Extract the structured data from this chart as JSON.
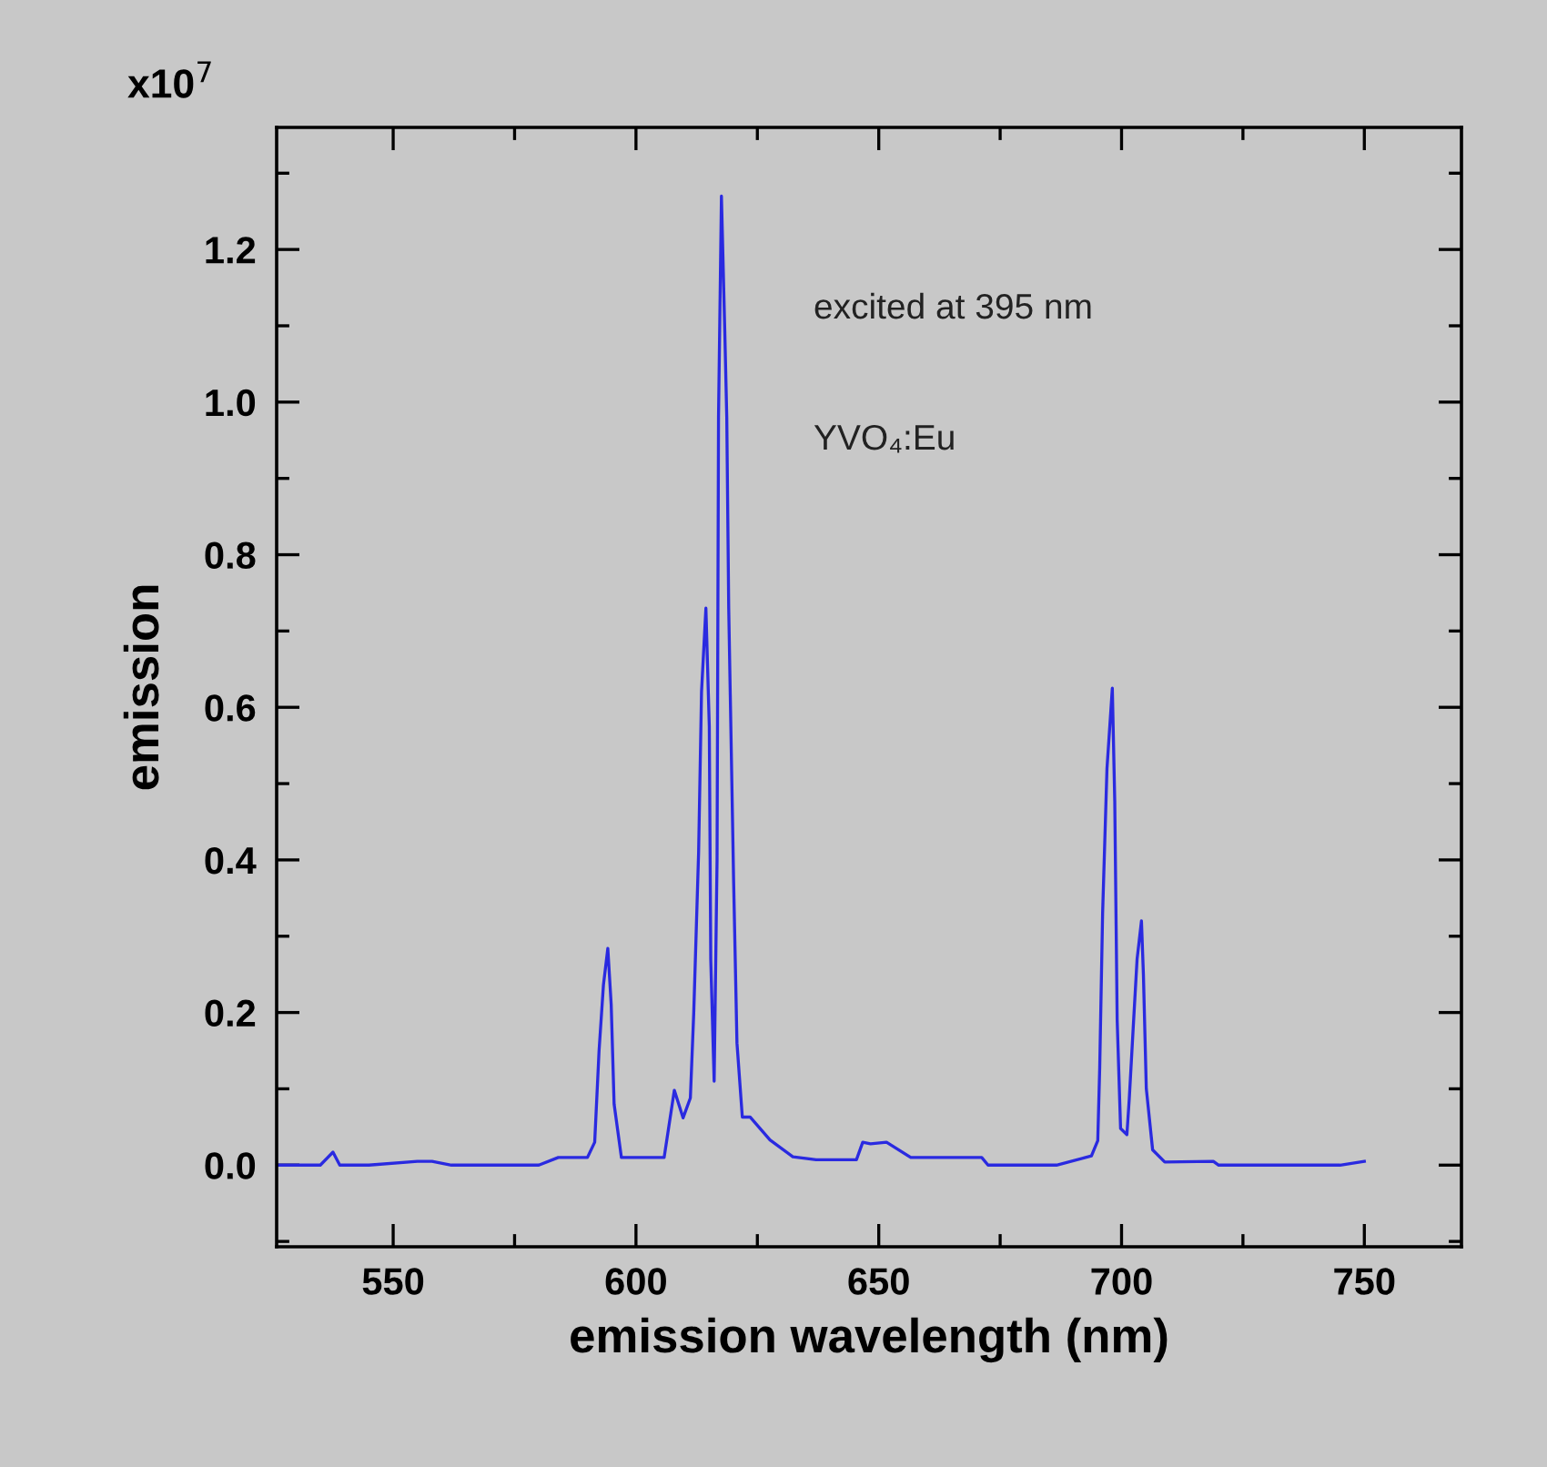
{
  "chart_data": {
    "type": "line",
    "xlabel": "emission wavelength (nm)",
    "ylabel": "emission",
    "annotations": [
      "x10$^{7}$",
      "excited at 395 nm",
      "YVO₄:Eu"
    ],
    "xlim": [
      526,
      770
    ],
    "ylim": [
      -0.107,
      1.36
    ],
    "xticks": [
      550,
      600,
      650,
      700,
      750
    ],
    "yticks": [
      {
        "value": 0,
        "label": "0.0"
      },
      {
        "value": 0.2,
        "label": "0.2"
      },
      {
        "value": 0.4,
        "label": "0.4"
      },
      {
        "value": 0.6,
        "label": "0.6"
      },
      {
        "value": 0.8,
        "label": "0.8"
      },
      {
        "value": 1.0,
        "label": "1.0"
      },
      {
        "value": 1.2,
        "label": "1.2"
      }
    ],
    "grid": false,
    "marker": "none",
    "line_style": "solid",
    "series": [
      {
        "color": "#2a2ae0",
        "x": [
          526,
          535,
          537.6,
          539,
          545,
          555,
          558,
          562,
          565,
          580,
          584,
          590,
          591.5,
          592.4,
          593.3,
          594.2,
          594.9,
          595.5,
          597,
          605.8,
          607.9,
          609.7,
          611.2,
          611.9,
          612.9,
          613.5,
          614.4,
          615.1,
          615.4,
          616.1,
          616.7,
          617.0,
          617.6,
          618.3,
          618.7,
          619.1,
          620.1,
          620.8,
          621.9,
          623.5,
          627.6,
          632.3,
          637.1,
          645.4,
          646.7,
          648.3,
          651.6,
          656.6,
          671.2,
          672.5,
          686.6,
          693.8,
          695.1,
          695.5,
          696.1,
          697,
          698.1,
          698.6,
          699.1,
          699.8,
          701.1,
          701.6,
          702.4,
          703.2,
          704.1,
          704.5,
          705.1,
          706.4,
          708.9,
          718.9,
          720,
          745,
          750
        ],
        "values": [
          0,
          0,
          0.017,
          0,
          0,
          0.005,
          0.005,
          0,
          0,
          0,
          0.01,
          0.01,
          0.03,
          0.15,
          0.236,
          0.284,
          0.21,
          0.08,
          0.01,
          0.01,
          0.098,
          0.062,
          0.088,
          0.2,
          0.41,
          0.62,
          0.73,
          0.575,
          0.27,
          0.11,
          0.4,
          0.98,
          1.27,
          1.09,
          0.98,
          0.73,
          0.375,
          0.16,
          0.063,
          0.063,
          0.033,
          0.011,
          0.007,
          0.007,
          0.03,
          0.028,
          0.03,
          0.01,
          0.01,
          0,
          0,
          0.012,
          0.032,
          0.127,
          0.33,
          0.52,
          0.625,
          0.477,
          0.19,
          0.048,
          0.04,
          0.088,
          0.18,
          0.27,
          0.32,
          0.25,
          0.1,
          0.02,
          0.004,
          0.005,
          0,
          0,
          0.005
        ]
      }
    ]
  }
}
